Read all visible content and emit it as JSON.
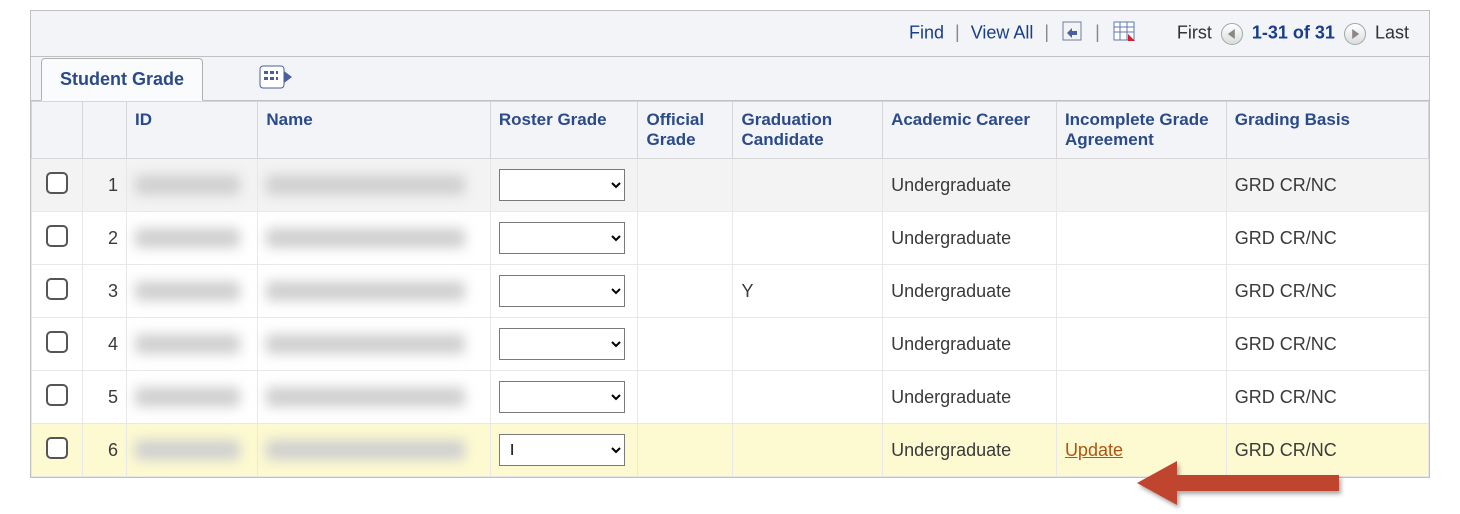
{
  "toolbar": {
    "find": "Find",
    "viewAll": "View All",
    "first": "First",
    "range": "1-31 of 31",
    "last": "Last"
  },
  "tab": {
    "label": "Student Grade"
  },
  "columns": {
    "id": "ID",
    "name": "Name",
    "roster": "Roster Grade",
    "official": "Official Grade",
    "gradCand": "Graduation Candidate",
    "career": "Academic Career",
    "incomplete": "Incomplete Grade Agreement",
    "basis": "Grading Basis"
  },
  "rows": [
    {
      "n": "1",
      "roster": "",
      "official": "",
      "gradCand": "",
      "career": "Undergraduate",
      "inc": "",
      "basis": "GRD CR/NC",
      "alt": true,
      "hl": false
    },
    {
      "n": "2",
      "roster": "",
      "official": "",
      "gradCand": "",
      "career": "Undergraduate",
      "inc": "",
      "basis": "GRD CR/NC",
      "alt": false,
      "hl": false
    },
    {
      "n": "3",
      "roster": "",
      "official": "",
      "gradCand": "Y",
      "career": "Undergraduate",
      "inc": "",
      "basis": "GRD CR/NC",
      "alt": false,
      "hl": false
    },
    {
      "n": "4",
      "roster": "",
      "official": "",
      "gradCand": "",
      "career": "Undergraduate",
      "inc": "",
      "basis": "GRD CR/NC",
      "alt": false,
      "hl": false
    },
    {
      "n": "5",
      "roster": "",
      "official": "",
      "gradCand": "",
      "career": "Undergraduate",
      "inc": "",
      "basis": "GRD CR/NC",
      "alt": false,
      "hl": false
    },
    {
      "n": "6",
      "roster": "I",
      "official": "",
      "gradCand": "",
      "career": "Undergraduate",
      "inc": "Update",
      "basis": "GRD CR/NC",
      "alt": false,
      "hl": true
    }
  ],
  "annotation": {
    "arrow_color": "#c0442e",
    "arrow_target": "update-link-row-6"
  }
}
